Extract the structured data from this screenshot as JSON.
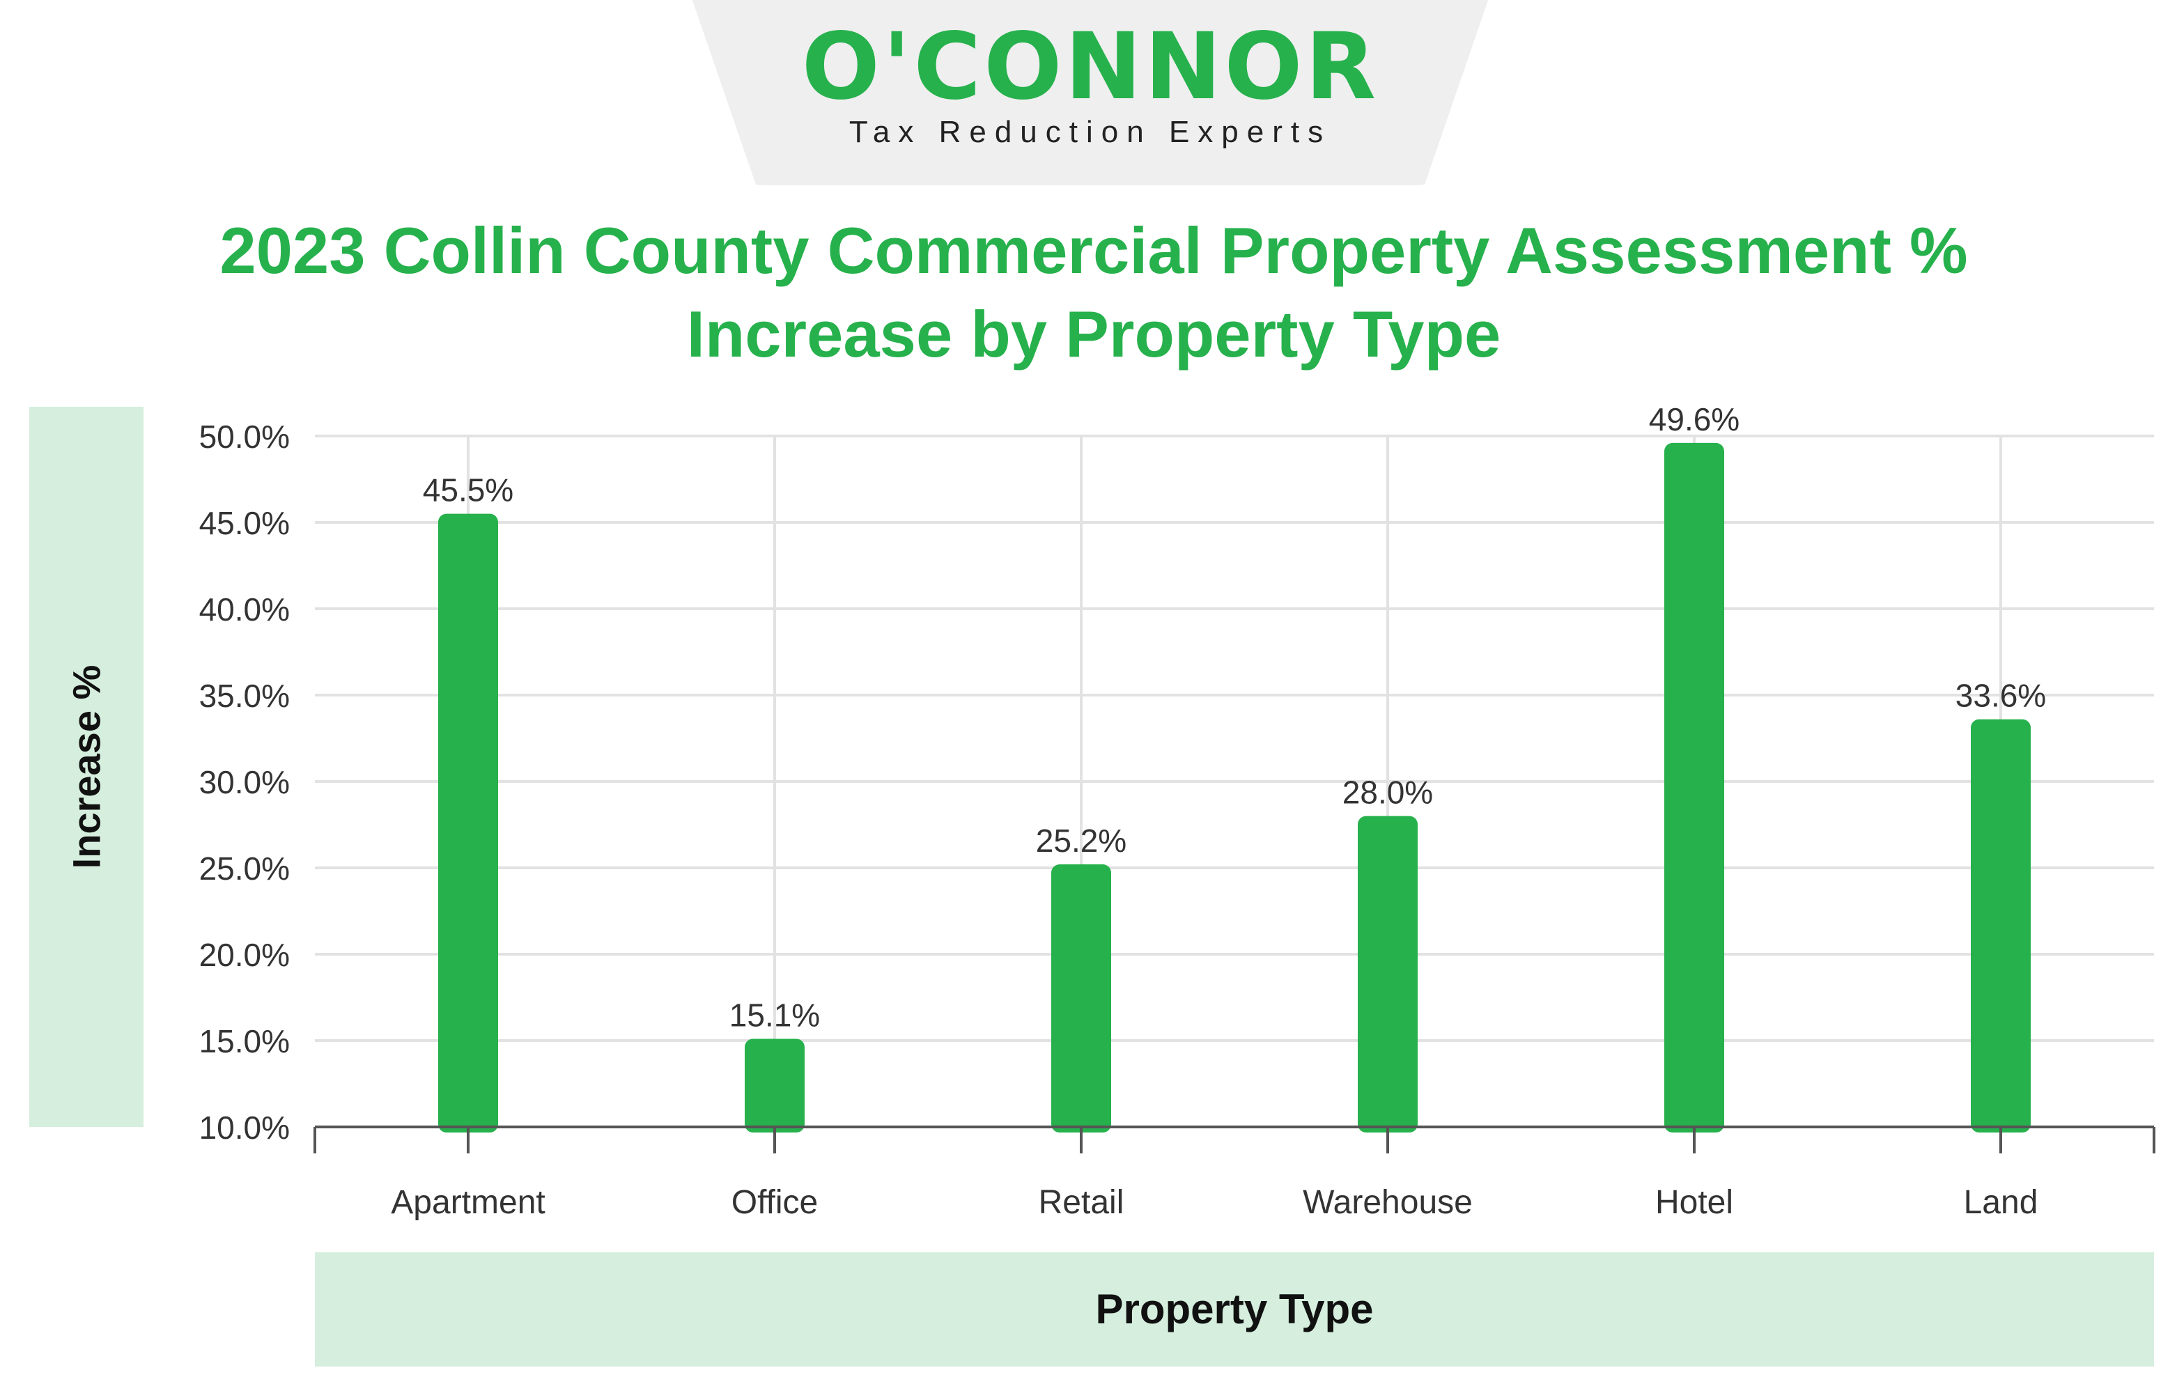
{
  "brand": {
    "name": "O'CONNOR",
    "tagline": "Tax Reduction Experts",
    "accent_color": "#26b14c",
    "panel_color": "#d5eedd"
  },
  "chart_data": {
    "type": "bar",
    "title": "2023 Collin County Commercial Property Assessment % Increase by Property Type",
    "xlabel": "Property Type",
    "ylabel": "Increase %",
    "categories": [
      "Apartment",
      "Office",
      "Retail",
      "Warehouse",
      "Hotel",
      "Land"
    ],
    "values": [
      45.5,
      15.1,
      25.2,
      28.0,
      49.6,
      33.6
    ],
    "value_labels": [
      "45.5%",
      "15.1%",
      "25.2%",
      "28.0%",
      "49.6%",
      "33.6%"
    ],
    "ylim": [
      10,
      50
    ],
    "yticks": [
      "10.0%",
      "15.0%",
      "20.0%",
      "25.0%",
      "30.0%",
      "35.0%",
      "40.0%",
      "45.0%",
      "50.0%"
    ],
    "ytick_values": [
      10,
      15,
      20,
      25,
      30,
      35,
      40,
      45,
      50
    ],
    "grid": true,
    "bar_color": "#26b14c"
  }
}
